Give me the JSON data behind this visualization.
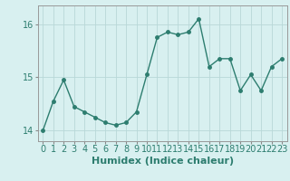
{
  "x": [
    0,
    1,
    2,
    3,
    4,
    5,
    6,
    7,
    8,
    9,
    10,
    11,
    12,
    13,
    14,
    15,
    16,
    17,
    18,
    19,
    20,
    21,
    22,
    23
  ],
  "y": [
    14.0,
    14.55,
    14.95,
    14.45,
    14.35,
    14.25,
    14.15,
    14.1,
    14.15,
    14.35,
    15.05,
    15.75,
    15.85,
    15.8,
    15.85,
    16.1,
    15.2,
    15.35,
    15.35,
    14.75,
    15.05,
    14.75,
    15.2,
    15.35
  ],
  "line_color": "#2d7d6f",
  "marker": "o",
  "marker_size": 2.5,
  "linewidth": 1.0,
  "bg_color": "#d8f0f0",
  "grid_color": "#b8d8d8",
  "xlabel": "Humidex (Indice chaleur)",
  "xlim": [
    -0.5,
    23.5
  ],
  "ylim": [
    13.8,
    16.35
  ],
  "yticks": [
    14,
    15,
    16
  ],
  "tick_fontsize": 7,
  "xlabel_fontsize": 8
}
